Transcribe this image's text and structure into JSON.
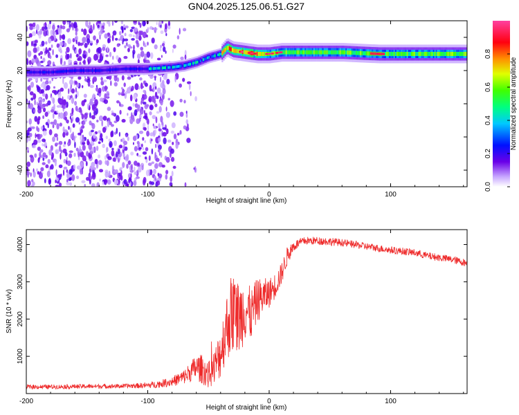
{
  "title": "GN04.2025.125.06.51.G27",
  "colors": {
    "snr_line": "#ee2a2a",
    "axis": "#000000",
    "colormap_stops": [
      "#ffffff",
      "#a070ff",
      "#4a00e0",
      "#0020ff",
      "#00e0ff",
      "#20ff40",
      "#ffff00",
      "#ff6000",
      "#ff0030",
      "#ff40a0"
    ]
  },
  "chart_data": [
    {
      "type": "heatmap",
      "xlabel": "Height of straight line (km)",
      "ylabel": "Frequency (Hz)",
      "xlim": [
        -200,
        163
      ],
      "ylim": [
        -50,
        50
      ],
      "xticks": [
        -200,
        -100,
        0,
        100
      ],
      "xtick_labels": [
        "-200",
        "-100",
        "0",
        "100"
      ],
      "yticks": [
        -40,
        -20,
        0,
        20,
        40
      ],
      "ytick_labels": [
        "-40",
        "-20",
        "0",
        "20",
        "40"
      ],
      "colorbar": {
        "label": "Normalized spectral amplitude",
        "range": [
          0,
          1
        ],
        "ticks": [
          0.0,
          0.2,
          0.4,
          0.6,
          0.8
        ],
        "tick_labels": [
          "0.0",
          "0.2",
          "0.4",
          "0.6",
          "0.8"
        ]
      },
      "ridge": {
        "x": [
          -200,
          -180,
          -160,
          -140,
          -120,
          -100,
          -80,
          -70,
          -60,
          -50,
          -40,
          -35,
          -30,
          -20,
          -10,
          0,
          10,
          30,
          60,
          90,
          120,
          163
        ],
        "y": [
          19,
          19,
          20,
          20,
          21,
          21,
          22,
          23,
          25,
          28,
          30,
          34,
          32,
          31,
          30,
          30,
          31,
          31,
          31,
          30,
          30,
          30
        ]
      }
    },
    {
      "type": "line",
      "xlabel": "Height of straight line (km)",
      "ylabel": "SNR (10 * v/v)",
      "xlim": [
        -200,
        163
      ],
      "ylim": [
        0,
        4400
      ],
      "xticks": [
        -200,
        -100,
        0,
        100
      ],
      "xtick_labels": [
        "-200",
        "-100",
        "0",
        "100"
      ],
      "yticks": [
        1000,
        2000,
        3000,
        4000
      ],
      "ytick_labels": [
        "1000",
        "2000",
        "3000",
        "4000"
      ],
      "series": [
        {
          "x": [
            -200,
            -180,
            -160,
            -140,
            -120,
            -100,
            -90,
            -80,
            -70,
            -60,
            -55,
            -50,
            -45,
            -40,
            -35,
            -30,
            -25,
            -20,
            -15,
            -10,
            -5,
            0,
            5,
            10,
            15,
            20,
            25,
            30,
            40,
            50,
            60,
            70,
            80,
            90,
            100,
            110,
            120,
            130,
            140,
            150,
            163
          ],
          "y": [
            180,
            180,
            190,
            195,
            200,
            220,
            260,
            320,
            450,
            700,
            650,
            500,
            700,
            1100,
            1800,
            2200,
            2000,
            2300,
            2100,
            2500,
            2600,
            2700,
            2900,
            3200,
            3700,
            3950,
            4050,
            4100,
            4100,
            4080,
            4050,
            4000,
            3950,
            3900,
            3850,
            3820,
            3780,
            3700,
            3650,
            3600,
            3500
          ],
          "noise_amplitude": [
            60,
            60,
            60,
            60,
            60,
            80,
            100,
            130,
            200,
            350,
            400,
            350,
            500,
            700,
            900,
            1200,
            1000,
            900,
            700,
            600,
            500,
            400,
            350,
            300,
            250,
            150,
            120,
            110,
            110,
            110,
            100,
            100,
            100,
            100,
            100,
            100,
            100,
            100,
            100,
            100,
            100
          ]
        }
      ]
    }
  ]
}
